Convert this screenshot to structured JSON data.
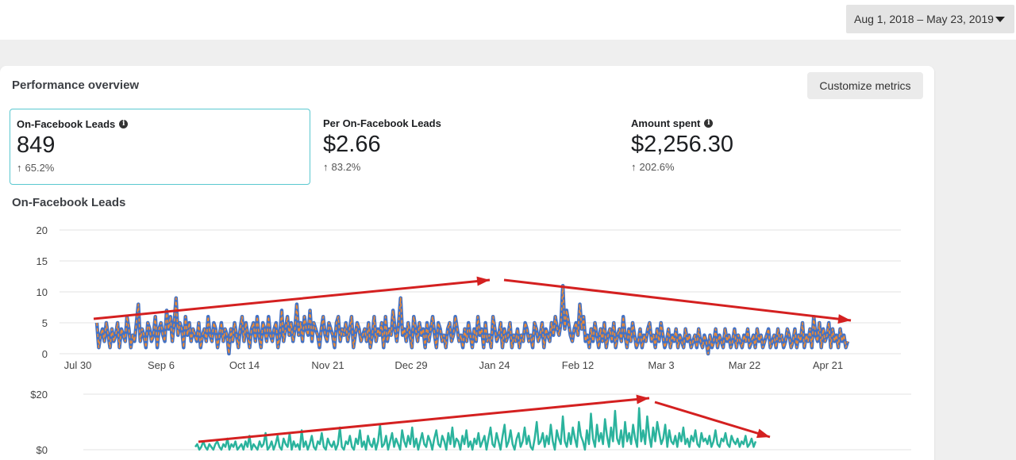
{
  "date_range": {
    "label": "Aug 1, 2018 – May 23, 2019",
    "icon": "caret-down-icon"
  },
  "panel": {
    "title": "Performance overview",
    "customize_label": "Customize metrics"
  },
  "metrics": [
    {
      "label": "On-Facebook Leads",
      "value": "849",
      "change": "65.2%",
      "info_icon": true,
      "selected": true
    },
    {
      "label": "Per On-Facebook Leads",
      "value": "$2.66",
      "change": "83.2%",
      "info_icon": false,
      "selected": false
    },
    {
      "label": "Amount spent",
      "value": "$2,256.30",
      "change": "202.6%",
      "info_icon": true,
      "selected": false
    }
  ],
  "colors": {
    "accent_border": "#5ac8d0",
    "series_line": "#4472c4",
    "series_highlight": "#f28a2e",
    "spend_line": "#2bb39d",
    "annotation_arrow": "#d42020",
    "grid": "#e3e3e3"
  },
  "chart_data": [
    {
      "type": "line",
      "title": "On-Facebook Leads",
      "x_ticks": [
        "Jul 30",
        "Sep 6",
        "Oct 14",
        "Nov 21",
        "Dec 29",
        "Jan 24",
        "Feb 12",
        "Mar 3",
        "Mar 22",
        "Apr 21"
      ],
      "y_ticks": [
        "0",
        "5",
        "10",
        "15",
        "20"
      ],
      "ylim": [
        0,
        20
      ],
      "grid": true,
      "series": [
        {
          "values": [
            5,
            1,
            3,
            4,
            2,
            5,
            3,
            1,
            4,
            2,
            3,
            5,
            1,
            4,
            3,
            2,
            6,
            4,
            1,
            3,
            2,
            5,
            8,
            2,
            4,
            3,
            1,
            5,
            4,
            2,
            3,
            6,
            1,
            4,
            5,
            3,
            2,
            7,
            4,
            6,
            2,
            5,
            9,
            3,
            5,
            4,
            1,
            6,
            3,
            5,
            2,
            4,
            3,
            2,
            5,
            1,
            3,
            4,
            2,
            6,
            3,
            2,
            5,
            4,
            1,
            3,
            5,
            2,
            4,
            3,
            0,
            4,
            2,
            5,
            3,
            1,
            4,
            6,
            2,
            5,
            3,
            1,
            4,
            5,
            2,
            6,
            3,
            1,
            5,
            4,
            2,
            6,
            3,
            2,
            4,
            5,
            1,
            3,
            7,
            2,
            4,
            6,
            3,
            5,
            2,
            4,
            8,
            3,
            5,
            2,
            6,
            4,
            3,
            7,
            2,
            5,
            4,
            3,
            1,
            4,
            6,
            3,
            2,
            5,
            4,
            3,
            1,
            5,
            6,
            2,
            4,
            3,
            5,
            2,
            4,
            6,
            1,
            3,
            5,
            4,
            2,
            3,
            4,
            2,
            5,
            1,
            3,
            6,
            2,
            4,
            3,
            5,
            1,
            6,
            2,
            4,
            3,
            7,
            4,
            2,
            5,
            9,
            3,
            4,
            2,
            5,
            3,
            1,
            6,
            4,
            2,
            5,
            3,
            4,
            1,
            5,
            2,
            4,
            6,
            3,
            1,
            5,
            4,
            2,
            3,
            1,
            4,
            5,
            2,
            3,
            6,
            4,
            2,
            3,
            1,
            4,
            2,
            5,
            3,
            1,
            4,
            2,
            6,
            3,
            4,
            1,
            5,
            2,
            3,
            1,
            6,
            4,
            2,
            3,
            5,
            1,
            4,
            2,
            3,
            5,
            1,
            3,
            2,
            4,
            1,
            3,
            2,
            5,
            4,
            2,
            3,
            1,
            5,
            4,
            2,
            3,
            5,
            1,
            4,
            3,
            2,
            5,
            3,
            6,
            4,
            3,
            5,
            11,
            4,
            7,
            5,
            3,
            2,
            4,
            5,
            3,
            8,
            4,
            6,
            2,
            3,
            1,
            4,
            2,
            5,
            3,
            1,
            4,
            2,
            5,
            1,
            3,
            4,
            2,
            5,
            1,
            3,
            4,
            2,
            6,
            3,
            1,
            4,
            2,
            5,
            3,
            1,
            2,
            4,
            1,
            3,
            2,
            4,
            5,
            2,
            3,
            1,
            4,
            2,
            5,
            3,
            1,
            2,
            4,
            1,
            3,
            2,
            4,
            1,
            3,
            2,
            1,
            4,
            2,
            3,
            1,
            2,
            3,
            1,
            4,
            2,
            1,
            3,
            2,
            0,
            3,
            1,
            2,
            4,
            1,
            3,
            2,
            1,
            4,
            2,
            3,
            1,
            2,
            4,
            1,
            3,
            2,
            1,
            3,
            2,
            4,
            1,
            2,
            3,
            1,
            4,
            2,
            3,
            1,
            2,
            3,
            4,
            1,
            2,
            3,
            1,
            4,
            2,
            3,
            1,
            2,
            4,
            3,
            1,
            2,
            4,
            1,
            3,
            2,
            5,
            1,
            3,
            2,
            4,
            1,
            6,
            3,
            2,
            5,
            1,
            4,
            2,
            3,
            5,
            1,
            4,
            2,
            3,
            1,
            4,
            2,
            3,
            1,
            2
          ]
        }
      ]
    },
    {
      "type": "line",
      "title": "",
      "y_ticks": [
        "$0",
        "$20"
      ],
      "ylim": [
        0,
        20
      ],
      "series": [
        {
          "values": [
            1,
            2,
            0,
            1,
            3,
            1,
            0,
            2,
            1,
            0,
            2,
            3,
            1,
            0,
            2,
            1,
            4,
            0,
            2,
            1,
            3,
            0,
            1,
            2,
            0,
            3,
            1,
            5,
            0,
            2,
            1,
            0,
            3,
            1,
            2,
            6,
            0,
            1,
            3,
            0,
            2,
            5,
            1,
            0,
            4,
            2,
            1,
            6,
            0,
            3,
            1,
            2,
            0,
            7,
            1,
            3,
            0,
            2,
            5,
            1,
            0,
            3,
            2,
            6,
            1,
            0,
            4,
            2,
            1,
            3,
            0,
            2,
            8,
            1,
            0,
            3,
            2,
            5,
            1,
            0,
            4,
            2,
            7,
            1,
            3,
            0,
            5,
            2,
            1,
            4,
            0,
            3,
            9,
            1,
            2,
            5,
            0,
            3,
            6,
            1,
            4,
            2,
            0,
            7,
            3,
            1,
            5,
            2,
            8,
            1,
            4,
            0,
            3,
            6,
            2,
            1,
            5,
            3,
            0,
            4,
            7,
            2,
            1,
            5,
            3,
            0,
            6,
            2,
            8,
            1,
            4,
            3,
            0,
            5,
            2,
            7,
            1,
            3,
            0,
            4,
            2,
            6,
            1,
            3,
            5,
            0,
            4,
            8,
            2,
            1,
            6,
            3,
            0,
            5,
            9,
            1,
            3,
            7,
            2,
            0,
            4,
            6,
            1,
            3,
            8,
            2,
            5,
            1,
            0,
            4,
            10,
            2,
            3,
            6,
            1,
            5,
            2,
            9,
            3,
            0,
            7,
            4,
            2,
            12,
            3,
            1,
            6,
            2,
            8,
            4,
            1,
            10,
            5,
            3,
            0,
            7,
            2,
            13,
            4,
            1,
            9,
            3,
            6,
            2,
            11,
            5,
            1,
            8,
            3,
            14,
            4,
            2,
            7,
            1,
            10,
            3,
            6,
            2,
            9,
            4,
            1,
            15,
            3,
            7,
            2,
            12,
            5,
            1,
            8,
            3,
            10,
            6,
            2,
            4,
            9,
            1,
            7,
            3,
            2,
            5,
            1,
            6,
            3,
            8,
            2,
            4,
            1,
            5,
            3,
            7,
            2,
            1,
            6,
            3,
            4,
            2,
            5,
            1,
            3,
            7,
            2,
            1,
            4,
            3,
            6,
            2,
            1,
            5,
            3,
            2,
            4,
            1,
            3,
            2,
            5,
            1,
            2,
            4,
            1,
            3
          ]
        }
      ]
    }
  ]
}
